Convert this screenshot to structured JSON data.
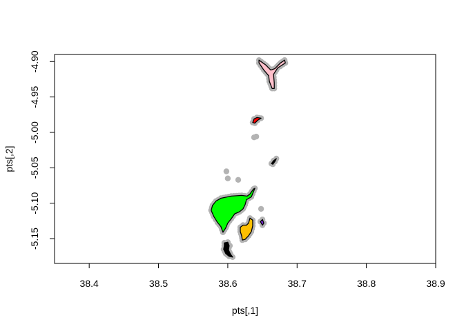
{
  "chart_data": {
    "type": "scatter",
    "title": "",
    "xlabel": "pts[,1]",
    "ylabel": "pts[,2]",
    "xlim": [
      38.35,
      38.9
    ],
    "ylim": [
      -5.185,
      -4.89
    ],
    "xticks": [
      38.4,
      38.5,
      38.6,
      38.7,
      38.8,
      38.9
    ],
    "xtick_labels": [
      "38.4",
      "38.5",
      "38.6",
      "38.7",
      "38.8",
      "38.9"
    ],
    "yticks": [
      -4.9,
      -4.95,
      -5.0,
      -5.05,
      -5.1,
      -5.15
    ],
    "ytick_labels": [
      "-4.90",
      "-4.95",
      "-5.00",
      "-5.05",
      "-5.10",
      "-5.15"
    ],
    "grid": false,
    "point_color": "#b3b3b3",
    "outline_color": "#000000",
    "series": [
      {
        "fill": "#ffc0cb",
        "points": [
          [
            38.645,
            -4.898
          ],
          [
            38.655,
            -4.905
          ],
          [
            38.662,
            -4.912
          ],
          [
            38.668,
            -4.91
          ],
          [
            38.676,
            -4.902
          ],
          [
            38.682,
            -4.898
          ],
          [
            38.683,
            -4.902
          ],
          [
            38.672,
            -4.909
          ],
          [
            38.666,
            -4.918
          ],
          [
            38.667,
            -4.93
          ],
          [
            38.667,
            -4.938
          ],
          [
            38.664,
            -4.938
          ],
          [
            38.66,
            -4.928
          ],
          [
            38.659,
            -4.92
          ],
          [
            38.652,
            -4.912
          ],
          [
            38.645,
            -4.902
          ]
        ]
      },
      {
        "fill": "#ff0000",
        "points": [
          [
            38.636,
            -4.986
          ],
          [
            38.638,
            -4.981
          ],
          [
            38.642,
            -4.979
          ],
          [
            38.648,
            -4.98
          ],
          [
            38.643,
            -4.983
          ],
          [
            38.639,
            -4.987
          ]
        ]
      },
      {
        "fill": "#000000",
        "points": [
          [
            38.663,
            -5.044
          ],
          [
            38.666,
            -5.04
          ],
          [
            38.67,
            -5.037
          ],
          [
            38.668,
            -5.041
          ],
          [
            38.665,
            -5.045
          ]
        ]
      },
      {
        "fill": "#00ff00",
        "points": [
          [
            38.59,
            -5.093
          ],
          [
            38.605,
            -5.09
          ],
          [
            38.62,
            -5.089
          ],
          [
            38.628,
            -5.09
          ],
          [
            38.632,
            -5.087
          ],
          [
            38.637,
            -5.08
          ],
          [
            38.639,
            -5.079
          ],
          [
            38.634,
            -5.091
          ],
          [
            38.627,
            -5.095
          ],
          [
            38.625,
            -5.102
          ],
          [
            38.622,
            -5.108
          ],
          [
            38.617,
            -5.112
          ],
          [
            38.61,
            -5.115
          ],
          [
            38.605,
            -5.122
          ],
          [
            38.6,
            -5.128
          ],
          [
            38.597,
            -5.135
          ],
          [
            38.593,
            -5.141
          ],
          [
            38.59,
            -5.133
          ],
          [
            38.585,
            -5.127
          ],
          [
            38.58,
            -5.119
          ],
          [
            38.576,
            -5.11
          ],
          [
            38.578,
            -5.103
          ],
          [
            38.583,
            -5.097
          ]
        ]
      },
      {
        "fill": "#ffc000",
        "points": [
          [
            38.632,
            -5.121
          ],
          [
            38.636,
            -5.124
          ],
          [
            38.636,
            -5.132
          ],
          [
            38.634,
            -5.14
          ],
          [
            38.63,
            -5.146
          ],
          [
            38.625,
            -5.151
          ],
          [
            38.621,
            -5.152
          ],
          [
            38.62,
            -5.146
          ],
          [
            38.618,
            -5.14
          ],
          [
            38.618,
            -5.134
          ],
          [
            38.622,
            -5.131
          ],
          [
            38.627,
            -5.131
          ],
          [
            38.63,
            -5.128
          ]
        ]
      },
      {
        "fill": "#7b2bd9",
        "points": [
          [
            38.647,
            -5.126
          ],
          [
            38.65,
            -5.123
          ],
          [
            38.652,
            -5.128
          ],
          [
            38.65,
            -5.131
          ]
        ]
      },
      {
        "fill": "#000000",
        "points": [
          [
            38.595,
            -5.156
          ],
          [
            38.6,
            -5.155
          ],
          [
            38.602,
            -5.16
          ],
          [
            38.601,
            -5.166
          ],
          [
            38.604,
            -5.172
          ],
          [
            38.607,
            -5.176
          ],
          [
            38.602,
            -5.175
          ],
          [
            38.597,
            -5.171
          ],
          [
            38.594,
            -5.165
          ],
          [
            38.595,
            -5.16
          ]
        ]
      }
    ],
    "stray_points": [
      [
        38.598,
        -5.055
      ],
      [
        38.6,
        -5.065
      ],
      [
        38.615,
        -5.067
      ],
      [
        38.638,
        -5.007
      ],
      [
        38.641,
        -5.006
      ],
      [
        38.648,
        -5.108
      ],
      [
        38.603,
        -5.16
      ]
    ]
  }
}
